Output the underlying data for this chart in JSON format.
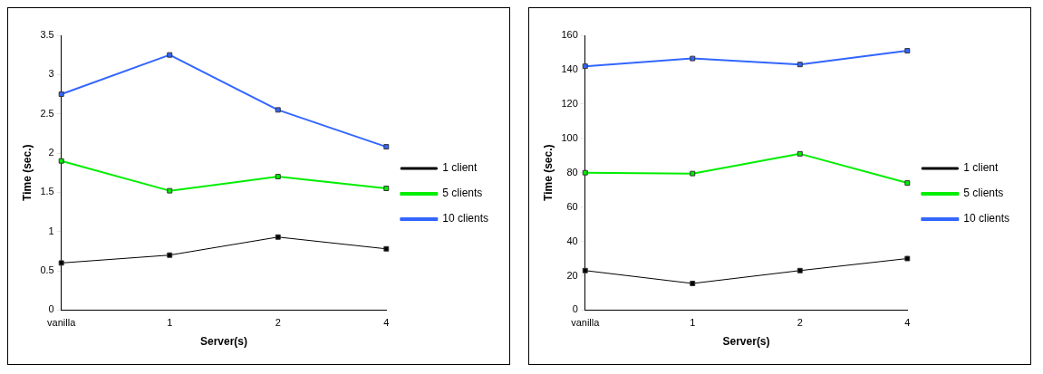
{
  "chart_data": [
    {
      "type": "line",
      "xlabel": "Server(s)",
      "ylabel": "Time (sec.)",
      "categories": [
        "vanilla",
        "1",
        "2",
        "4"
      ],
      "ylim": [
        0,
        3.5
      ],
      "yticks": [
        0,
        0.5,
        1,
        1.5,
        2,
        2.5,
        3,
        3.5
      ],
      "grid": false,
      "legend": "right",
      "marker": "square",
      "line_style": "solid",
      "series": [
        {
          "name": "1 client",
          "color": "#000000",
          "values": [
            0.6,
            0.7,
            0.93,
            0.78
          ]
        },
        {
          "name": "5 clients",
          "color": "#00ee00",
          "values": [
            1.9,
            1.52,
            1.7,
            1.55
          ]
        },
        {
          "name": "10 clients",
          "color": "#3366ff",
          "values": [
            2.75,
            3.25,
            2.55,
            2.08
          ]
        }
      ]
    },
    {
      "type": "line",
      "xlabel": "Server(s)",
      "ylabel": "Time (sec.)",
      "categories": [
        "vanilla",
        "1",
        "2",
        "4"
      ],
      "ylim": [
        0,
        160
      ],
      "yticks": [
        0,
        20,
        40,
        60,
        80,
        100,
        120,
        140,
        160
      ],
      "grid": false,
      "legend": "right",
      "marker": "square",
      "line_style": "solid",
      "series": [
        {
          "name": "1 client",
          "color": "#000000",
          "values": [
            23,
            15.5,
            23,
            30
          ]
        },
        {
          "name": "5 clients",
          "color": "#00ee00",
          "values": [
            80,
            79.5,
            91,
            74
          ]
        },
        {
          "name": "10 clients",
          "color": "#3366ff",
          "values": [
            142,
            146.5,
            143,
            151
          ]
        }
      ]
    }
  ]
}
